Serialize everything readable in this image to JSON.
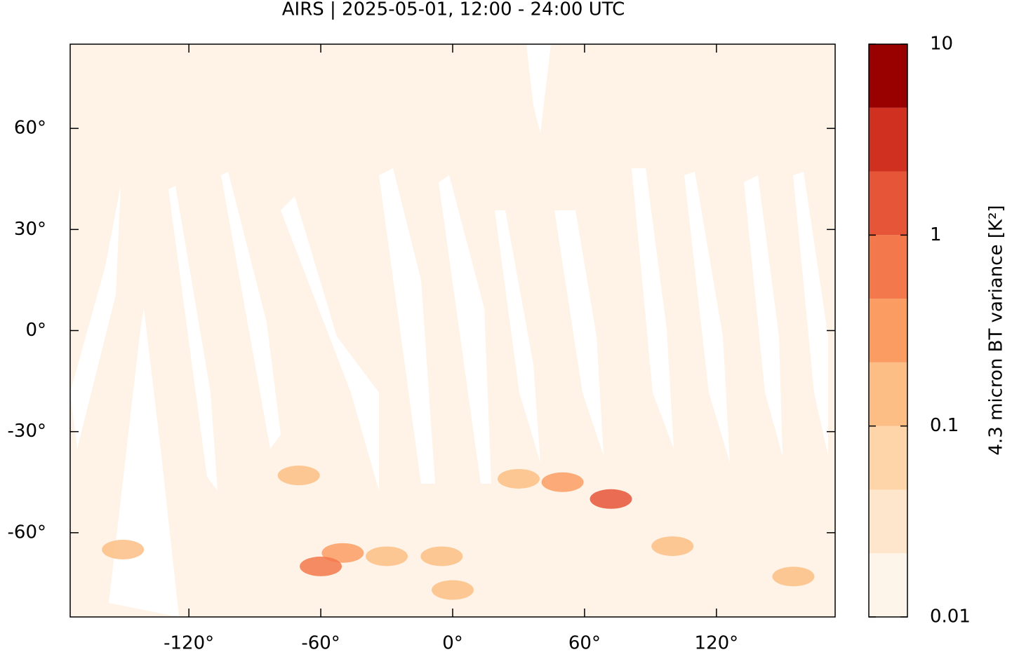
{
  "chart_data": {
    "type": "map",
    "title": "AIRS | 2025-05-01, 12:00 - 24:00 UTC",
    "xlim": [
      -174,
      174
    ],
    "ylim": [
      -85,
      85
    ],
    "xticks": [
      {
        "value": -120,
        "label": "-120°"
      },
      {
        "value": -60,
        "label": "-60°"
      },
      {
        "value": 0,
        "label": "0°"
      },
      {
        "value": 60,
        "label": "60°"
      },
      {
        "value": 120,
        "label": "120°"
      }
    ],
    "yticks": [
      {
        "value": 60,
        "label": "60°"
      },
      {
        "value": 30,
        "label": "30°"
      },
      {
        "value": 0,
        "label": "0°"
      },
      {
        "value": -30,
        "label": "-30°"
      },
      {
        "value": -60,
        "label": "-60°"
      }
    ],
    "background_color": "#fef3e6",
    "hotspots": {
      "lon": [
        -60,
        -50,
        -70,
        72,
        30,
        -150,
        100,
        155,
        -5,
        -30,
        0,
        50
      ],
      "lat": [
        -70,
        -66,
        -43,
        -50,
        -44,
        -65,
        -64,
        -73,
        -67,
        -67,
        -77,
        -45
      ],
      "values": [
        0.5,
        0.3,
        0.2,
        1,
        0.15,
        0.15,
        0.2,
        0.15,
        0.2,
        0.15,
        0.2,
        0.3
      ]
    },
    "colorbar": {
      "label": "4.3 micron BT variance [K²]",
      "scale": "log",
      "lim": [
        0.01,
        10
      ],
      "ticks": [
        0.01,
        0.1,
        1,
        10
      ],
      "levels": [
        0.01,
        0.0215,
        0.0464,
        0.1,
        0.215,
        0.464,
        1,
        2.15,
        4.64,
        10
      ],
      "colors": [
        "#fef5ea",
        "#fde6cc",
        "#fdd5a8",
        "#fdbe85",
        "#fb9c63",
        "#f3784b",
        "#e65538",
        "#d0301f",
        "#990000"
      ]
    }
  }
}
